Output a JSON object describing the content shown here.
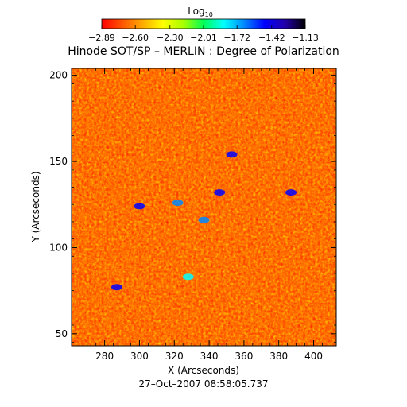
{
  "chart_data": {
    "type": "heatmap",
    "title": "Hinode SOT/SP – MERLIN : Degree of Polarization",
    "timestamp": "27–Oct–2007 08:58:05.737",
    "xlabel": "X (Arcseconds)",
    "ylabel": "Y (Arcseconds)",
    "xlim": [
      261,
      413
    ],
    "ylim": [
      43,
      204
    ],
    "x_ticks": [
      280,
      300,
      320,
      340,
      360,
      380,
      400
    ],
    "y_ticks": [
      50,
      100,
      150,
      200
    ],
    "x_tick_labels": [
      "280",
      "300",
      "320",
      "340",
      "360",
      "380",
      "400"
    ],
    "y_tick_labels": [
      "50",
      "100",
      "150",
      "200"
    ],
    "colorbar": {
      "label_base": "Log",
      "label_sub": "10",
      "min": -2.89,
      "max": -1.13,
      "tick_values": [
        -2.89,
        -2.6,
        -2.3,
        -2.01,
        -1.72,
        -1.42,
        -1.13
      ],
      "tick_labels": [
        "−2.89",
        "−2.60",
        "−2.30",
        "−2.01",
        "−1.72",
        "−1.42",
        "−1.13"
      ],
      "colors": [
        "#ff0000",
        "#ff5500",
        "#ffaa00",
        "#ffff00",
        "#aaff00",
        "#00ff55",
        "#00ffff",
        "#0088ff",
        "#0000ff",
        "#2200aa",
        "#000000"
      ]
    },
    "features": [
      {
        "x": 300,
        "y": 124,
        "level": -1.5
      },
      {
        "x": 322,
        "y": 126,
        "level": -1.6
      },
      {
        "x": 346,
        "y": 132,
        "level": -1.5
      },
      {
        "x": 353,
        "y": 154,
        "level": -1.5
      },
      {
        "x": 387,
        "y": 132,
        "level": -1.5
      },
      {
        "x": 287,
        "y": 77,
        "level": -1.5
      },
      {
        "x": 337,
        "y": 116,
        "level": -1.7
      },
      {
        "x": 328,
        "y": 83,
        "level": -1.8
      }
    ]
  }
}
